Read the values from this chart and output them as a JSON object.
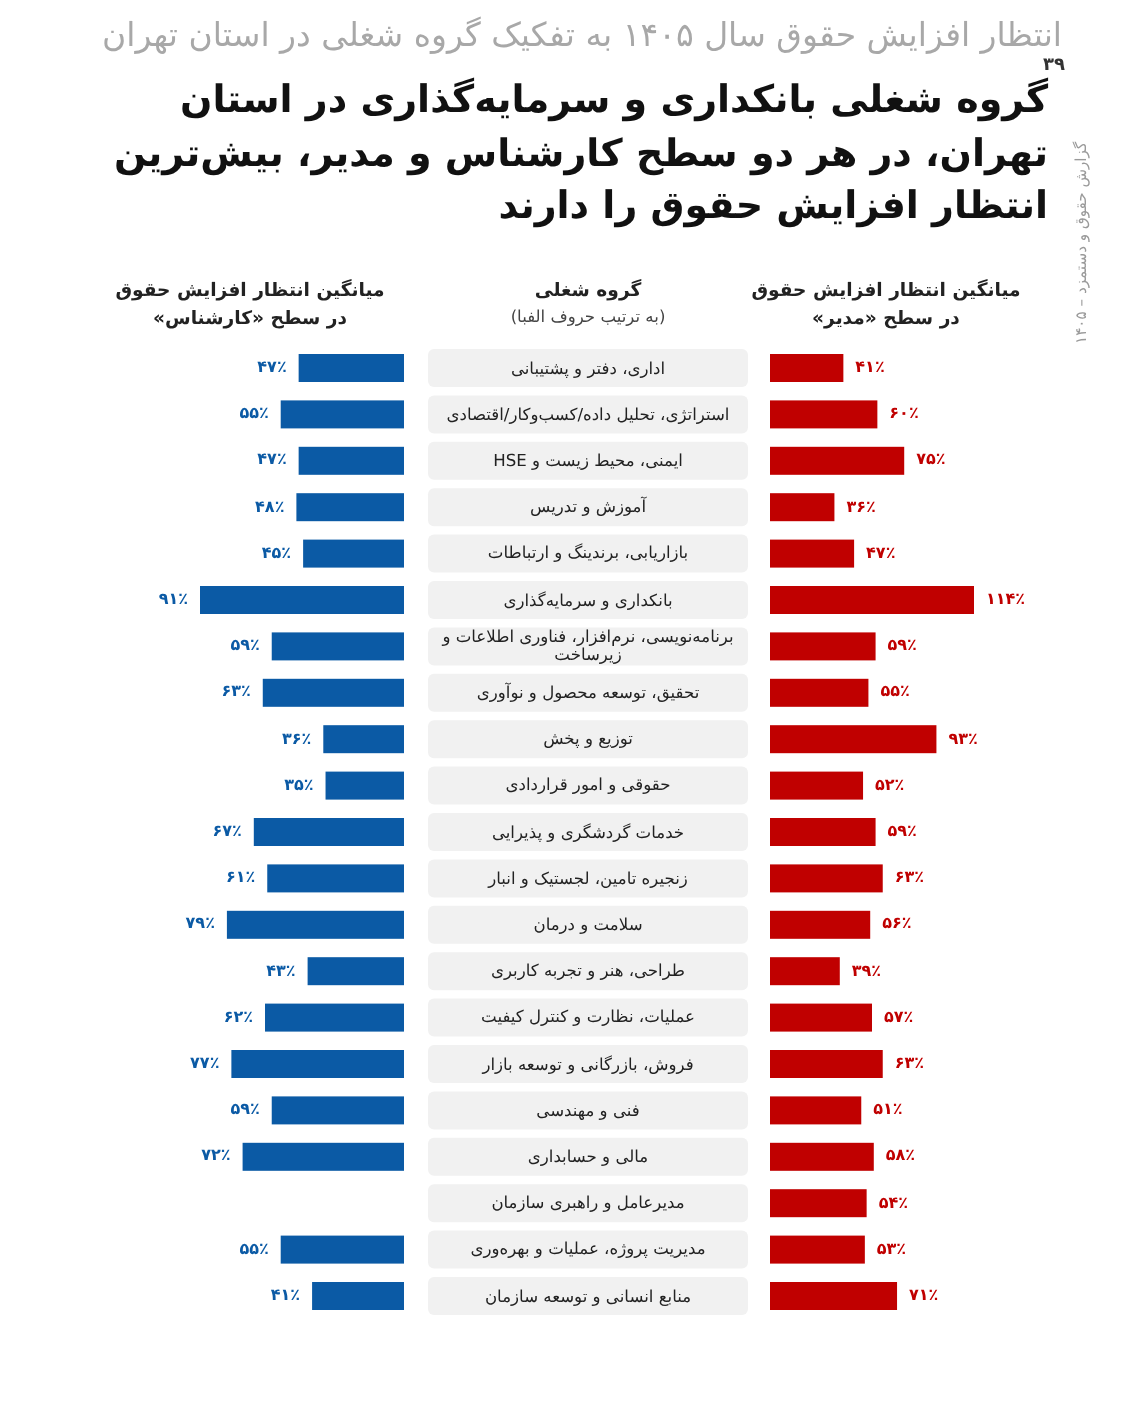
{
  "chart_data": [
    {
      "type": "bar",
      "orientation": "horizontal",
      "subtitle": "انتظار افزایش حقوق سال ۱۴۰۵ به تفکیک گروه شغلی در استان تهران",
      "title": "گروه شغلی بانکداری و سرمایه‌گذاری در استان تهران، در هر دو سطح کارشناس و مدیر، بیش‌ترین انتظار افزایش حقوق را دارند",
      "xlabel": "میانگین انتظار افزایش حقوق در سطح «کارشناس»",
      "ylabel": "گروه شغلی",
      "annotations": [
        "(به ترتیب حروف الفبا)",
        "۳۹",
        "گزارش حقوق و دستمزد – ۱۴۰۵"
      ],
      "categories": [
        "اداری، دفتر و پشتیبانی",
        "استراتژی، تحلیل داده/کسب‌وکار/اقتصادی",
        "ایمنی، محیط زیست و HSE",
        "آموزش و تدریس",
        "بازاریابی، برندینگ و ارتباطات",
        "بانکداری و سرمایه‌گذاری",
        "برنامه‌نویسی، نرم‌افزار، فناوری اطلاعات و زیرساخت",
        "تحقیق، توسعه محصول و نوآوری",
        "توزیع و پخش",
        "حقوقی و امور قراردادی",
        "خدمات گردشگری و پذیرایی",
        "زنجیره تامین، لجستیک و انبار",
        "سلامت و درمان",
        "طراحی، هنر و تجربه کاربری",
        "عملیات، نظارت و کنترل کیفیت",
        "فروش، بازرگانی و توسعه بازار",
        "فنی و مهندسی",
        "مالی و حسابداری",
        "مدیرعامل و راهبری سازمان",
        "مدیریت پروژه، عملیات و بهره‌وری",
        "منابع انسانی و توسعه سازمان"
      ],
      "values": [
        47,
        55,
        47,
        48,
        45,
        91,
        59,
        63,
        36,
        35,
        67,
        61,
        79,
        43,
        62,
        77,
        59,
        72,
        null,
        55,
        41
      ],
      "value_labels": [
        "۴۷٪",
        "۵۵٪",
        "۴۷٪",
        "۴۸٪",
        "۴۵٪",
        "۹۱٪",
        "۵۹٪",
        "۶۳٪",
        "۳۶٪",
        "۳۵٪",
        "۶۷٪",
        "۶۱٪",
        "۷۹٪",
        "۴۳٪",
        "۶۲٪",
        "۷۷٪",
        "۵۹٪",
        "۷۲٪",
        null,
        "۵۵٪",
        "۴۱٪"
      ],
      "color": "#0b5aa5",
      "xlim": [
        91,
        0
      ],
      "tick_labels": "y"
    },
    {
      "type": "bar",
      "orientation": "horizontal",
      "xlabel": "میانگین انتظار افزایش حقوق در سطح «مدیر»",
      "categories": [
        null,
        null,
        null,
        null,
        null,
        null,
        null,
        null,
        null,
        null,
        null,
        null,
        null,
        null,
        null,
        null,
        null,
        null,
        null,
        null,
        null
      ],
      "values": [
        41,
        60,
        75,
        36,
        47,
        114,
        59,
        55,
        93,
        52,
        59,
        63,
        56,
        39,
        57,
        63,
        51,
        58,
        54,
        53,
        71
      ],
      "value_labels": [
        "۴۱٪",
        "۶۰٪",
        "۷۵٪",
        "۳۶٪",
        "۴۷٪",
        "۱۱۴٪",
        "۵۹٪",
        "۵۵٪",
        "۹۳٪",
        "۵۲٪",
        "۵۹٪",
        "۶۳٪",
        "۵۶٪",
        "۳۹٪",
        "۵۷٪",
        "۶۳٪",
        "۵۱٪",
        "۵۸٪",
        "۵۴٪",
        "۵۳٪",
        "۷۱٪"
      ],
      "color": "#c00000",
      "xlim": [
        0,
        114
      ],
      "tick_labels": false
    }
  ]
}
